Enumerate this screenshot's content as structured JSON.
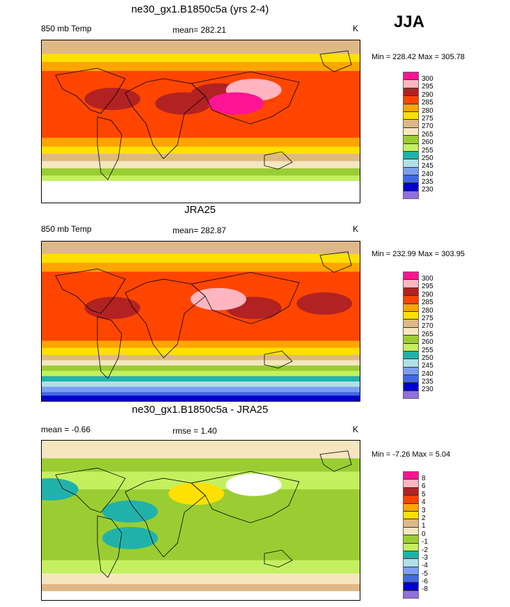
{
  "season": "JJA",
  "colors": [
    "#ff1493",
    "#ffb6c1",
    "#b22222",
    "#ff4500",
    "#ffa500",
    "#ffe000",
    "#deb887",
    "#f5e6c0",
    "#9acd32",
    "#c4f060",
    "#20b2aa",
    "#b0e0e6",
    "#7b9ff0",
    "#4169e1",
    "#0000cd",
    "#9370db"
  ],
  "panels": [
    {
      "title": "ne30_gx1.B1850c5a (yrs 2-4)",
      "left_label": "850 mb Temp",
      "center_label": "mean= 282.21",
      "units": "K",
      "minmax": "Min = 228.42 Max = 305.78",
      "levels": [
        "300",
        "295",
        "290",
        "285",
        "280",
        "275",
        "270",
        "265",
        "260",
        "255",
        "250",
        "245",
        "240",
        "235",
        "230"
      ]
    },
    {
      "title": "JRA25",
      "left_label": "850 mb Temp",
      "center_label": "mean= 282.87",
      "units": "K",
      "minmax": "Min = 232.99 Max = 303.95",
      "levels": [
        "300",
        "295",
        "290",
        "285",
        "280",
        "275",
        "270",
        "265",
        "260",
        "255",
        "250",
        "245",
        "240",
        "235",
        "230"
      ]
    },
    {
      "title": "ne30_gx1.B1850c5a - JRA25",
      "left_label": "mean =  -0.66",
      "center_label": "rmse =  1.40",
      "units": "K",
      "minmax": "Min =  -7.26 Max =   5.04",
      "levels": [
        "8",
        "6",
        "5",
        "4",
        "3",
        "2",
        "1",
        "0",
        "-1",
        "-2",
        "-3",
        "-4",
        "-5",
        "-6",
        "-8"
      ]
    }
  ],
  "chart_data": [
    {
      "type": "heatmap",
      "title": "ne30_gx1.B1850c5a (yrs 2-4)",
      "field": "850 mb Temp",
      "units": "K",
      "season": "JJA",
      "zonal_bands": [
        [
          90,
          75,
          6
        ],
        [
          75,
          66,
          5
        ],
        [
          66,
          56,
          4
        ],
        [
          56,
          -18,
          3
        ],
        [
          -18,
          -28,
          4
        ],
        [
          -28,
          -36,
          5
        ],
        [
          -36,
          -44,
          6
        ],
        [
          -44,
          -52,
          7
        ],
        [
          -52,
          -60,
          8
        ],
        [
          -60,
          -66,
          9
        ],
        [
          -66,
          -90,
          -1
        ]
      ],
      "blobs": [
        [
          30,
          20,
          2
        ],
        [
          20,
          -20,
          2
        ],
        [
          35,
          60,
          1
        ],
        [
          25,
          -100,
          2
        ],
        [
          20,
          40,
          0
        ]
      ]
    },
    {
      "type": "heatmap",
      "title": "JRA25",
      "field": "850 mb Temp",
      "units": "K",
      "season": "JJA",
      "zonal_bands": [
        [
          90,
          76,
          6
        ],
        [
          76,
          66,
          5
        ],
        [
          66,
          56,
          4
        ],
        [
          56,
          -22,
          3
        ],
        [
          -22,
          -30,
          4
        ],
        [
          -30,
          -38,
          5
        ],
        [
          -38,
          -44,
          6
        ],
        [
          -44,
          -50,
          7
        ],
        [
          -50,
          -56,
          8
        ],
        [
          -56,
          -62,
          9
        ],
        [
          -62,
          -68,
          10
        ],
        [
          -68,
          -74,
          11
        ],
        [
          -74,
          -80,
          12
        ],
        [
          -80,
          -84,
          13
        ],
        [
          -84,
          -90,
          14
        ]
      ],
      "blobs": [
        [
          15,
          60,
          2
        ],
        [
          20,
          140,
          2
        ],
        [
          15,
          -100,
          2
        ],
        [
          25,
          20,
          1
        ]
      ]
    },
    {
      "type": "heatmap",
      "title": "ne30_gx1.B1850c5a - JRA25",
      "units": "K",
      "season": "JJA",
      "zonal_bands": [
        [
          90,
          70,
          7
        ],
        [
          70,
          55,
          8
        ],
        [
          55,
          35,
          9
        ],
        [
          35,
          -45,
          8
        ],
        [
          -45,
          -60,
          9
        ],
        [
          -60,
          -72,
          7
        ],
        [
          -72,
          -80,
          6
        ],
        [
          -80,
          -90,
          -1
        ]
      ],
      "blobs": [
        [
          35,
          -170,
          10
        ],
        [
          10,
          -80,
          10
        ],
        [
          -20,
          -80,
          10
        ],
        [
          40,
          60,
          -1
        ],
        [
          30,
          -5,
          5
        ]
      ]
    }
  ]
}
